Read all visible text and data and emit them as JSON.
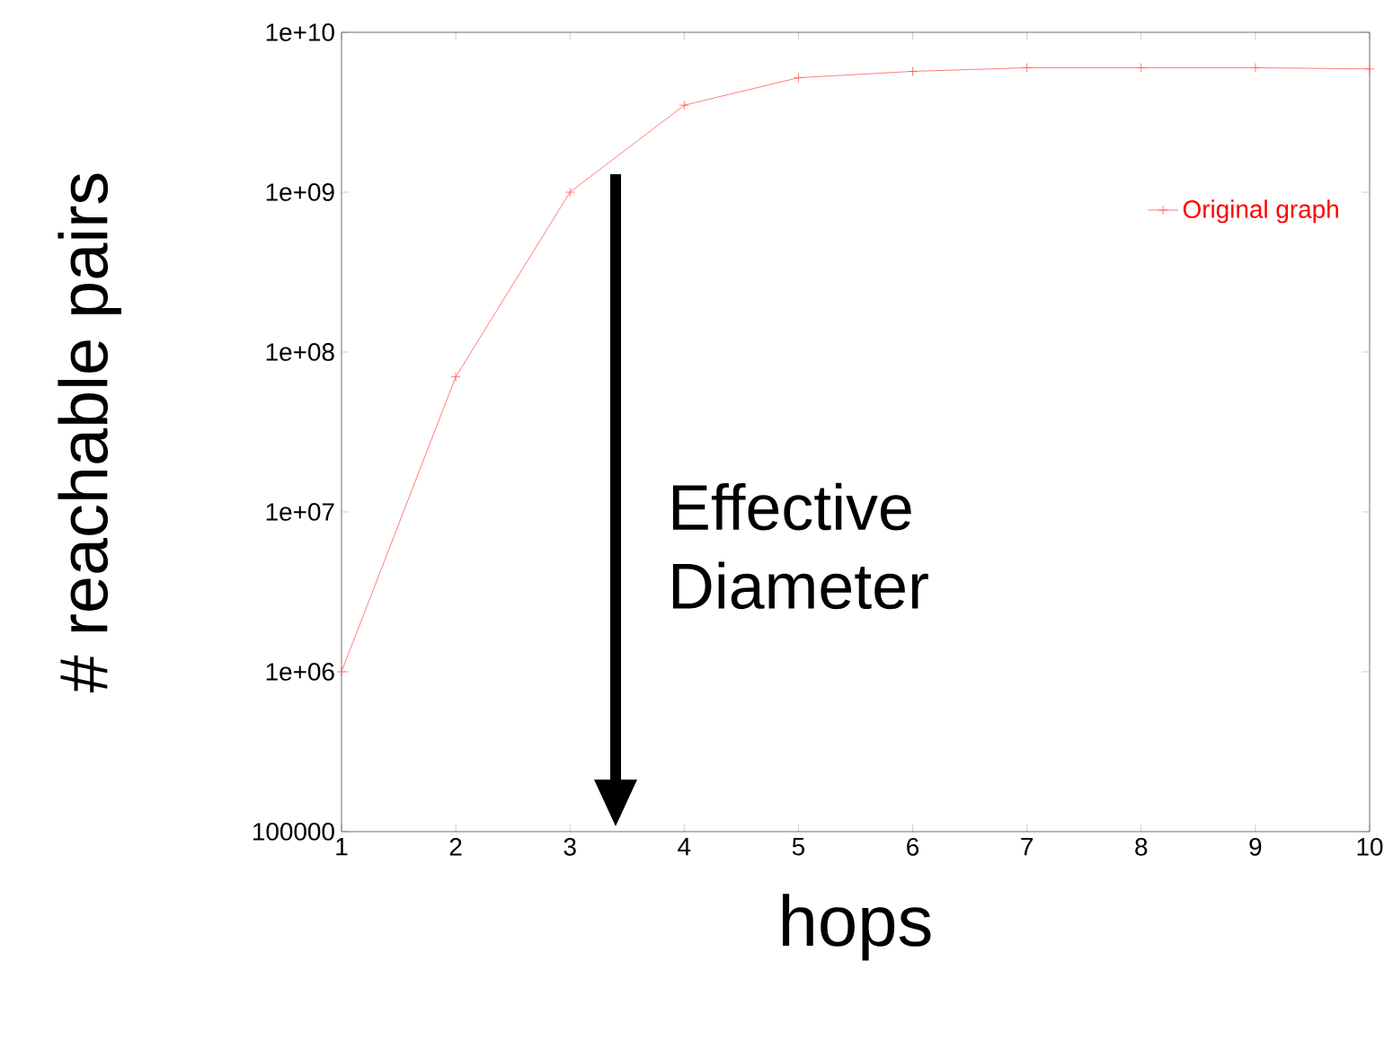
{
  "chart_data": {
    "type": "line",
    "xlabel": "hops",
    "ylabel": "# reachable pairs",
    "x": [
      1,
      2,
      3,
      4,
      5,
      6,
      7,
      8,
      9,
      10
    ],
    "series": [
      {
        "name": "Original graph",
        "color": "#ff5a5a",
        "values": [
          1000000,
          70000000,
          1000000000,
          3500000000,
          5200000000,
          5700000000,
          6000000000,
          6000000000,
          6000000000,
          5900000000
        ]
      }
    ],
    "xlim": [
      1,
      10
    ],
    "xticks": [
      1,
      2,
      3,
      4,
      5,
      6,
      7,
      8,
      9,
      10
    ],
    "ylim": [
      100000,
      10000000000
    ],
    "yticks": [
      100000,
      {
        "value": 1000000,
        "label": "1e+06"
      },
      {
        "value": 10000000,
        "label": "1e+07"
      },
      {
        "value": 100000000,
        "label": "1e+08"
      },
      {
        "value": 1000000000,
        "label": "1e+09"
      },
      {
        "value": 10000000000,
        "label": "1e+10"
      }
    ],
    "log": "y",
    "grid": false,
    "legend": "top right",
    "marker": "cross",
    "line_style": "solid",
    "annotations": [
      "Effective Diameter"
    ]
  }
}
